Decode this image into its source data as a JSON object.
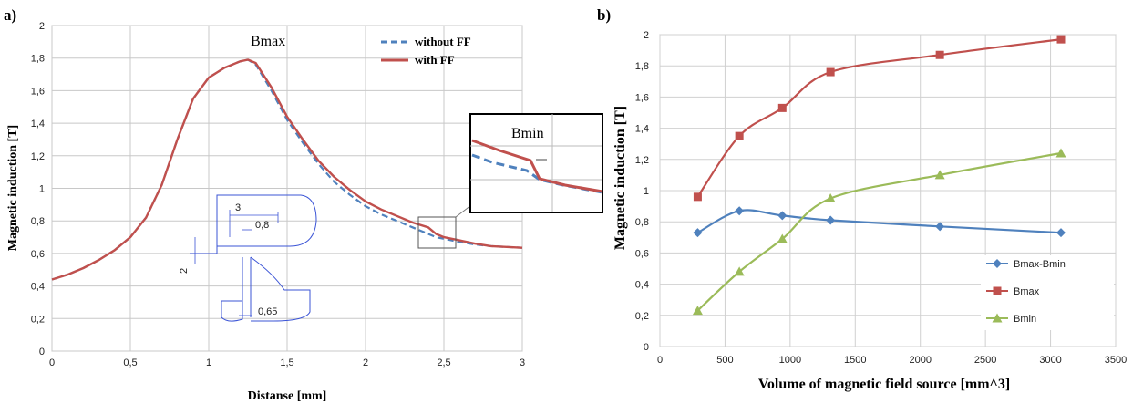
{
  "chart_data": [
    {
      "panel": "a)",
      "type": "line",
      "xlabel": "Distanse [mm]",
      "ylabel": "Magnetic induction [T]",
      "xlim": [
        0,
        3
      ],
      "ylim": [
        0,
        2
      ],
      "x_ticks": [
        "0",
        "0,5",
        "1",
        "1,5",
        "2",
        "2,5",
        "3"
      ],
      "y_ticks": [
        "0",
        "0,2",
        "0,4",
        "0,6",
        "0,8",
        "1",
        "1,2",
        "1,4",
        "1,6",
        "1,8",
        "2"
      ],
      "grid": true,
      "legend_position": "top-right",
      "series": [
        {
          "name": "without FF",
          "color": "#4f81bd",
          "style": "dashed",
          "x": [
            0,
            0.1,
            0.2,
            0.3,
            0.4,
            0.5,
            0.6,
            0.7,
            0.8,
            0.9,
            1.0,
            1.1,
            1.2,
            1.25,
            1.3,
            1.4,
            1.5,
            1.6,
            1.7,
            1.8,
            1.9,
            2.0,
            2.1,
            2.2,
            2.3,
            2.4,
            2.45,
            2.5,
            2.6,
            2.7,
            2.8,
            2.9,
            3.0
          ],
          "y": [
            0.44,
            0.47,
            0.51,
            0.56,
            0.62,
            0.7,
            0.82,
            1.02,
            1.3,
            1.55,
            1.68,
            1.74,
            1.78,
            1.79,
            1.76,
            1.6,
            1.42,
            1.28,
            1.15,
            1.04,
            0.96,
            0.89,
            0.84,
            0.8,
            0.76,
            0.72,
            0.7,
            0.69,
            0.67,
            0.655,
            0.645,
            0.64,
            0.635
          ]
        },
        {
          "name": "with FF",
          "color": "#c0504d",
          "style": "solid",
          "x": [
            0,
            0.1,
            0.2,
            0.3,
            0.4,
            0.5,
            0.6,
            0.7,
            0.8,
            0.9,
            1.0,
            1.1,
            1.2,
            1.25,
            1.3,
            1.4,
            1.5,
            1.6,
            1.7,
            1.8,
            1.9,
            2.0,
            2.1,
            2.2,
            2.3,
            2.4,
            2.45,
            2.5,
            2.6,
            2.7,
            2.8,
            2.9,
            3.0
          ],
          "y": [
            0.44,
            0.47,
            0.51,
            0.56,
            0.62,
            0.7,
            0.82,
            1.02,
            1.3,
            1.55,
            1.68,
            1.74,
            1.78,
            1.79,
            1.77,
            1.62,
            1.44,
            1.3,
            1.17,
            1.07,
            0.99,
            0.92,
            0.87,
            0.83,
            0.79,
            0.76,
            0.72,
            0.7,
            0.68,
            0.66,
            0.645,
            0.64,
            0.635
          ]
        }
      ],
      "annotations": {
        "peak_label": "Bmax",
        "inset_label": "Bmin",
        "dimensions": [
          "3",
          "0,8",
          "2",
          "0,65"
        ]
      }
    },
    {
      "panel": "b)",
      "type": "line",
      "xlabel": "Volume of magnetic field source [mm^3]",
      "ylabel": "Magnetic induction [T]",
      "xlim": [
        0,
        3500
      ],
      "ylim": [
        0,
        2
      ],
      "x_ticks": [
        "0",
        "500",
        "1000",
        "1500",
        "2000",
        "2500",
        "3000",
        "3500"
      ],
      "y_ticks": [
        "0",
        "0,2",
        "0,4",
        "0,6",
        "0,8",
        "1",
        "1,2",
        "1,4",
        "1,6",
        "1,8",
        "2"
      ],
      "grid": true,
      "legend_position": "bottom-right",
      "series": [
        {
          "name": "Bmax-Bmin",
          "color": "#4f81bd",
          "marker": "diamond",
          "x": [
            290,
            610,
            940,
            1310,
            2150,
            3080
          ],
          "y": [
            0.73,
            0.87,
            0.84,
            0.81,
            0.77,
            0.73
          ]
        },
        {
          "name": "Bmax",
          "color": "#c0504d",
          "marker": "square",
          "x": [
            290,
            610,
            940,
            1310,
            2150,
            3080
          ],
          "y": [
            0.96,
            1.35,
            1.53,
            1.76,
            1.87,
            1.97
          ]
        },
        {
          "name": "Bmin",
          "color": "#9bbb59",
          "marker": "triangle",
          "x": [
            290,
            610,
            940,
            1310,
            2150,
            3080
          ],
          "y": [
            0.23,
            0.48,
            0.69,
            0.95,
            1.1,
            1.24
          ]
        }
      ]
    }
  ]
}
